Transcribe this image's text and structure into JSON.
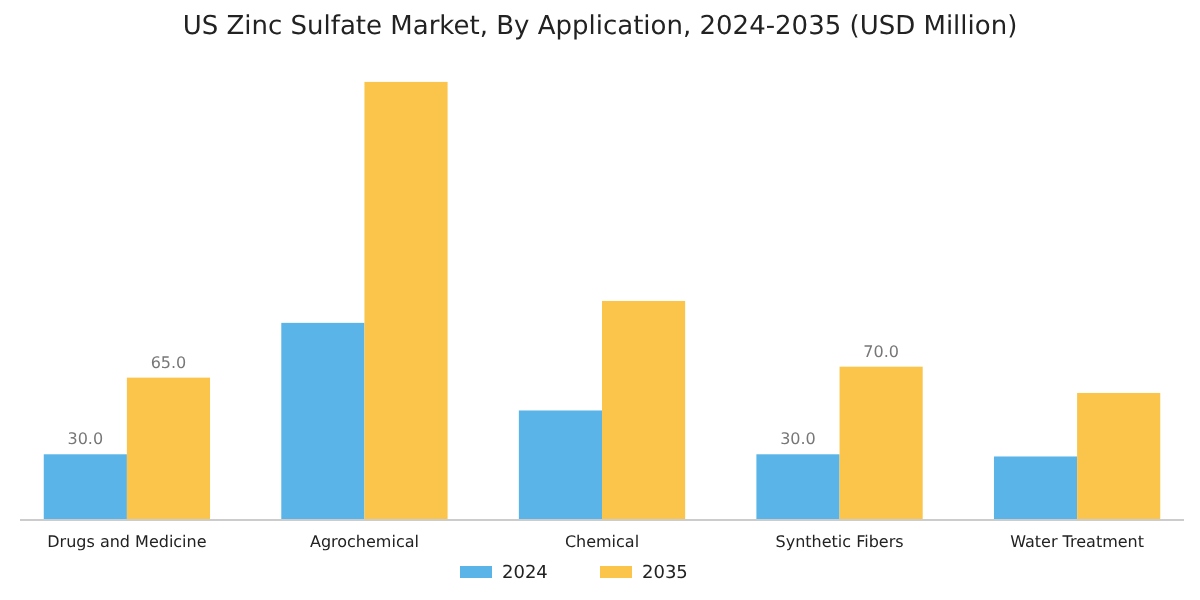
{
  "chart_data": {
    "type": "bar",
    "title": "US Zinc Sulfate Market, By Application, 2024-2035 (USD Million)",
    "categories": [
      "Drugs and Medicine",
      "Agrochemical",
      "Chemical",
      "Synthetic Fibers",
      "Water Treatment"
    ],
    "series": [
      {
        "name": "2024",
        "color": "#5ab4e8",
        "values": [
          30,
          90,
          50,
          30,
          29
        ],
        "value_labels": [
          "30.0",
          null,
          null,
          "30.0",
          null
        ]
      },
      {
        "name": "2035",
        "color": "#fbc54c",
        "values": [
          65,
          200,
          100,
          70,
          58
        ],
        "value_labels": [
          "65.0",
          null,
          null,
          "70.0",
          null
        ]
      }
    ],
    "tick_labels": "x",
    "legend": "bottom"
  }
}
